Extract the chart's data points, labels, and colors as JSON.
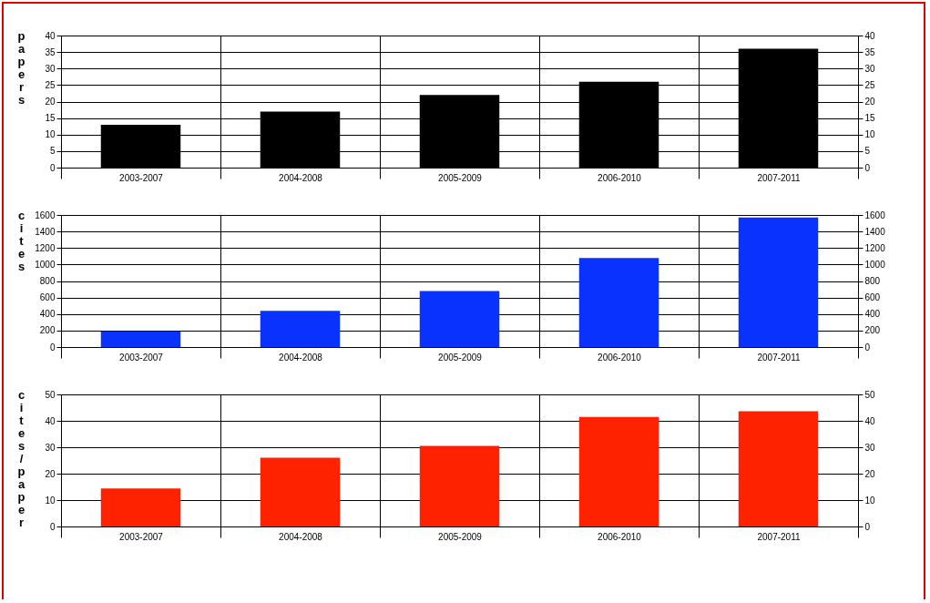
{
  "chart_data": [
    {
      "type": "bar",
      "ylabel": "papers",
      "categories": [
        "2003-2007",
        "2004-2008",
        "2005-2009",
        "2006-2010",
        "2007-2011"
      ],
      "values": [
        13,
        17,
        22,
        26,
        36
      ],
      "color": "#000000",
      "ylim": [
        0,
        40
      ],
      "yticks": [
        0,
        5,
        10,
        15,
        20,
        25,
        30,
        35,
        40
      ],
      "y2lim": [
        0,
        40
      ],
      "y2ticks": [
        0,
        5,
        10,
        15,
        20,
        25,
        30,
        35,
        40
      ],
      "grid": true
    },
    {
      "type": "bar",
      "ylabel": "cites",
      "categories": [
        "2003-2007",
        "2004-2008",
        "2005-2009",
        "2006-2010",
        "2007-2011"
      ],
      "values": [
        190,
        440,
        680,
        1080,
        1570
      ],
      "color": "#0a32ff",
      "ylim": [
        0,
        1600
      ],
      "yticks": [
        0,
        200,
        400,
        600,
        800,
        1000,
        1200,
        1400,
        1600
      ],
      "y2lim": [
        0,
        1600
      ],
      "y2ticks": [
        0,
        200,
        400,
        600,
        800,
        1000,
        1200,
        1400,
        1600
      ],
      "grid": true
    },
    {
      "type": "bar",
      "ylabel": "cites/paper",
      "categories": [
        "2003-2007",
        "2004-2008",
        "2005-2009",
        "2006-2010",
        "2007-2011"
      ],
      "values": [
        14.4,
        26,
        30.5,
        41.5,
        43.6
      ],
      "color": "#ff2200",
      "ylim": [
        0,
        50
      ],
      "yticks": [
        0,
        10,
        20,
        30,
        40,
        50
      ],
      "y2lim": [
        0,
        50
      ],
      "y2ticks": [
        0,
        10,
        20,
        30,
        40,
        50
      ],
      "grid": true
    }
  ]
}
